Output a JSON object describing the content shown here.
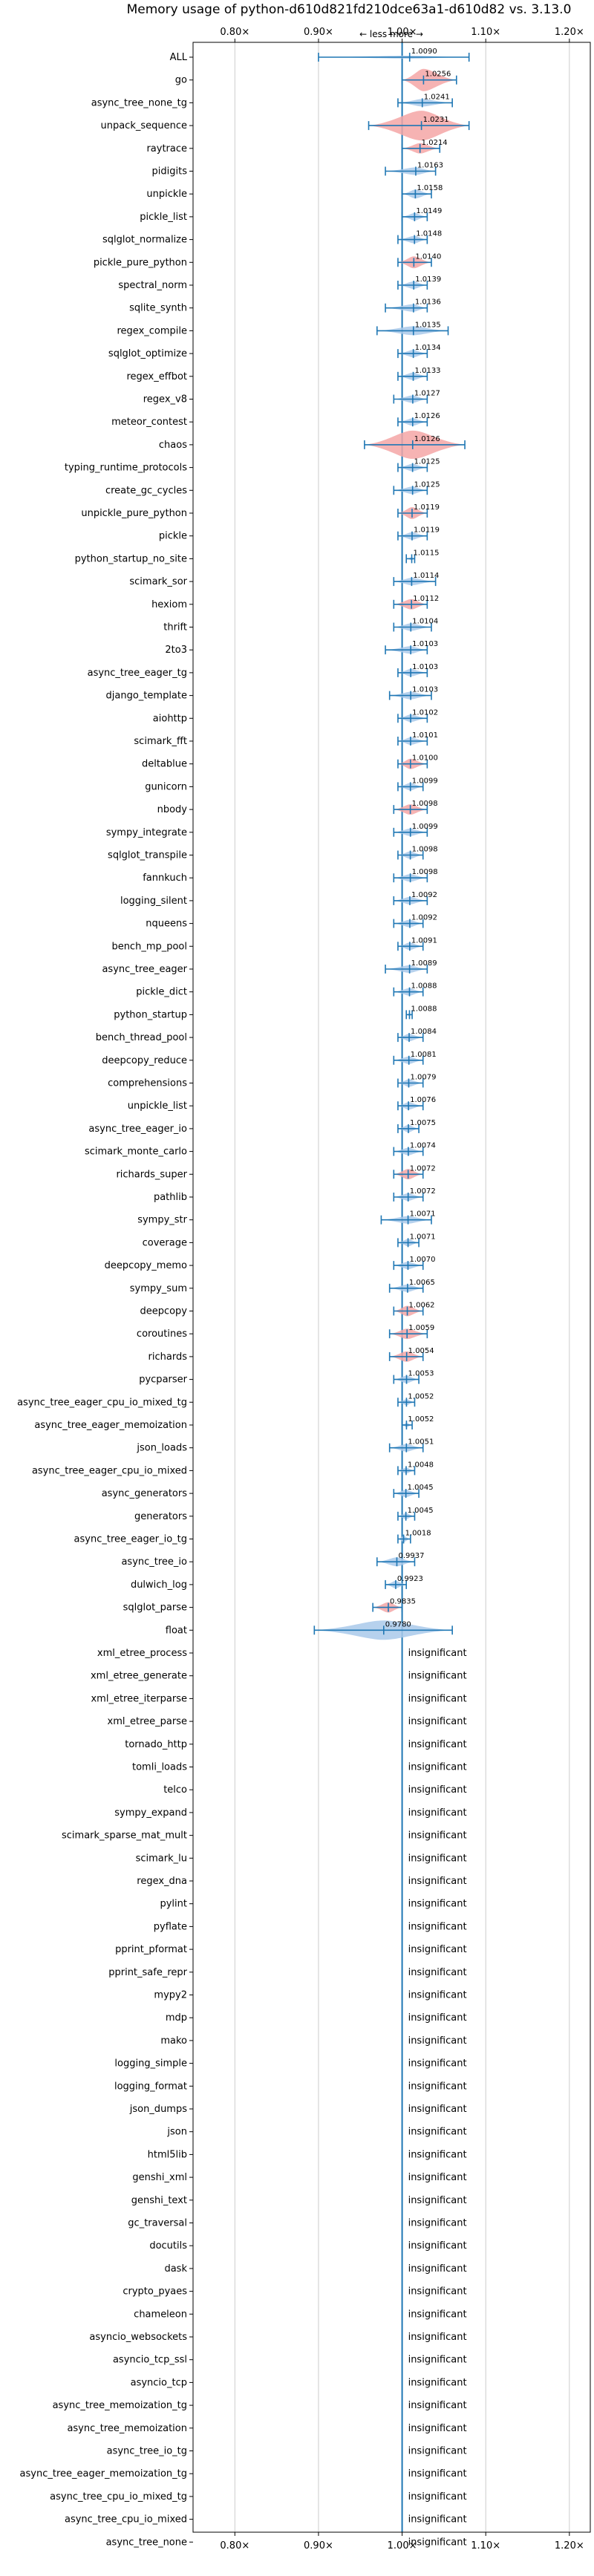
{
  "chart_data": {
    "type": "violin",
    "title": "Memory usage of python-d610d821fd210dce63a1-d610d82 vs. 3.13.0",
    "direction_label": "← less   more →",
    "insignificant_label": "insignificant",
    "xlim": [
      0.75,
      1.225
    ],
    "xticks": [
      0.8,
      0.9,
      1.0,
      1.1,
      1.2
    ],
    "xtick_labels": [
      "0.80×",
      "0.90×",
      "1.00×",
      "1.10×",
      "1.20×"
    ],
    "colors": {
      "regression": "#f4a6a6",
      "improvement": "#a9c9ea",
      "line": "#1f77b4",
      "grid": "#cccccc"
    },
    "benchmarks": [
      {
        "name": "ALL",
        "value": 1.009,
        "label": "1.0090",
        "lo": 0.9,
        "hi": 1.08,
        "w": 4,
        "color": "improvement"
      },
      {
        "name": "go",
        "value": 1.0256,
        "label": "1.0256",
        "lo": 1.0,
        "hi": 1.065,
        "w": 30,
        "color": "regression"
      },
      {
        "name": "async_tree_none_tg",
        "value": 1.0241,
        "label": "1.0241",
        "lo": 0.995,
        "hi": 1.06,
        "w": 10,
        "color": "improvement"
      },
      {
        "name": "unpack_sequence",
        "value": 1.0231,
        "label": "1.0231",
        "lo": 0.96,
        "hi": 1.08,
        "w": 40,
        "color": "regression"
      },
      {
        "name": "raytrace",
        "value": 1.0214,
        "label": "1.0214",
        "lo": 1.0,
        "hi": 1.045,
        "w": 14,
        "color": "regression"
      },
      {
        "name": "pidigits",
        "value": 1.0163,
        "label": "1.0163",
        "lo": 0.98,
        "hi": 1.04,
        "w": 10,
        "color": "improvement"
      },
      {
        "name": "unpickle",
        "value": 1.0158,
        "label": "1.0158",
        "lo": 1.0,
        "hi": 1.035,
        "w": 12,
        "color": "improvement"
      },
      {
        "name": "pickle_list",
        "value": 1.0149,
        "label": "1.0149",
        "lo": 1.0,
        "hi": 1.03,
        "w": 10,
        "color": "improvement"
      },
      {
        "name": "sqlglot_normalize",
        "value": 1.0148,
        "label": "1.0148",
        "lo": 0.995,
        "hi": 1.03,
        "w": 10,
        "color": "improvement"
      },
      {
        "name": "pickle_pure_python",
        "value": 1.014,
        "label": "1.0140",
        "lo": 0.995,
        "hi": 1.035,
        "w": 16,
        "color": "regression"
      },
      {
        "name": "spectral_norm",
        "value": 1.0139,
        "label": "1.0139",
        "lo": 0.995,
        "hi": 1.03,
        "w": 10,
        "color": "improvement"
      },
      {
        "name": "sqlite_synth",
        "value": 1.0136,
        "label": "1.0136",
        "lo": 0.98,
        "hi": 1.03,
        "w": 10,
        "color": "improvement"
      },
      {
        "name": "regex_compile",
        "value": 1.0135,
        "label": "1.0135",
        "lo": 0.97,
        "hi": 1.055,
        "w": 12,
        "color": "improvement"
      },
      {
        "name": "sqlglot_optimize",
        "value": 1.0134,
        "label": "1.0134",
        "lo": 0.995,
        "hi": 1.03,
        "w": 10,
        "color": "improvement"
      },
      {
        "name": "regex_effbot",
        "value": 1.0133,
        "label": "1.0133",
        "lo": 0.995,
        "hi": 1.03,
        "w": 10,
        "color": "improvement"
      },
      {
        "name": "regex_v8",
        "value": 1.0127,
        "label": "1.0127",
        "lo": 0.99,
        "hi": 1.03,
        "w": 10,
        "color": "improvement"
      },
      {
        "name": "meteor_contest",
        "value": 1.0126,
        "label": "1.0126",
        "lo": 0.995,
        "hi": 1.03,
        "w": 10,
        "color": "improvement"
      },
      {
        "name": "chaos",
        "value": 1.0126,
        "label": "1.0126",
        "lo": 0.955,
        "hi": 1.075,
        "w": 38,
        "color": "regression"
      },
      {
        "name": "typing_runtime_protocols",
        "value": 1.0125,
        "label": "1.0125",
        "lo": 0.995,
        "hi": 1.03,
        "w": 10,
        "color": "improvement"
      },
      {
        "name": "create_gc_cycles",
        "value": 1.0125,
        "label": "1.0125",
        "lo": 0.99,
        "hi": 1.03,
        "w": 10,
        "color": "improvement"
      },
      {
        "name": "unpickle_pure_python",
        "value": 1.0119,
        "label": "1.0119",
        "lo": 0.995,
        "hi": 1.03,
        "w": 16,
        "color": "regression"
      },
      {
        "name": "pickle",
        "value": 1.0119,
        "label": "1.0119",
        "lo": 0.995,
        "hi": 1.03,
        "w": 10,
        "color": "improvement"
      },
      {
        "name": "python_startup_no_site",
        "value": 1.0115,
        "label": "1.0115",
        "lo": 1.005,
        "hi": 1.015,
        "w": 4,
        "color": "improvement"
      },
      {
        "name": "scimark_sor",
        "value": 1.0114,
        "label": "1.0114",
        "lo": 0.99,
        "hi": 1.04,
        "w": 10,
        "color": "improvement"
      },
      {
        "name": "hexiom",
        "value": 1.0112,
        "label": "1.0112",
        "lo": 0.99,
        "hi": 1.03,
        "w": 14,
        "color": "regression"
      },
      {
        "name": "thrift",
        "value": 1.0104,
        "label": "1.0104",
        "lo": 0.99,
        "hi": 1.035,
        "w": 10,
        "color": "improvement"
      },
      {
        "name": "2to3",
        "value": 1.0103,
        "label": "1.0103",
        "lo": 0.98,
        "hi": 1.03,
        "w": 10,
        "color": "improvement"
      },
      {
        "name": "async_tree_eager_tg",
        "value": 1.0103,
        "label": "1.0103",
        "lo": 0.995,
        "hi": 1.03,
        "w": 10,
        "color": "improvement"
      },
      {
        "name": "django_template",
        "value": 1.0103,
        "label": "1.0103",
        "lo": 0.985,
        "hi": 1.035,
        "w": 10,
        "color": "improvement"
      },
      {
        "name": "aiohttp",
        "value": 1.0102,
        "label": "1.0102",
        "lo": 0.995,
        "hi": 1.03,
        "w": 10,
        "color": "improvement"
      },
      {
        "name": "scimark_fft",
        "value": 1.0101,
        "label": "1.0101",
        "lo": 0.995,
        "hi": 1.03,
        "w": 10,
        "color": "improvement"
      },
      {
        "name": "deltablue",
        "value": 1.01,
        "label": "1.0100",
        "lo": 0.995,
        "hi": 1.03,
        "w": 14,
        "color": "regression"
      },
      {
        "name": "gunicorn",
        "value": 1.0099,
        "label": "1.0099",
        "lo": 0.995,
        "hi": 1.025,
        "w": 10,
        "color": "improvement"
      },
      {
        "name": "nbody",
        "value": 1.0098,
        "label": "1.0098",
        "lo": 0.99,
        "hi": 1.03,
        "w": 14,
        "color": "regression"
      },
      {
        "name": "sympy_integrate",
        "value": 1.0099,
        "label": "1.0099",
        "lo": 0.99,
        "hi": 1.03,
        "w": 10,
        "color": "improvement"
      },
      {
        "name": "sqlglot_transpile",
        "value": 1.0098,
        "label": "1.0098",
        "lo": 0.995,
        "hi": 1.025,
        "w": 10,
        "color": "improvement"
      },
      {
        "name": "fannkuch",
        "value": 1.0098,
        "label": "1.0098",
        "lo": 0.99,
        "hi": 1.03,
        "w": 10,
        "color": "improvement"
      },
      {
        "name": "logging_silent",
        "value": 1.0092,
        "label": "1.0092",
        "lo": 0.99,
        "hi": 1.03,
        "w": 10,
        "color": "improvement"
      },
      {
        "name": "nqueens",
        "value": 1.0092,
        "label": "1.0092",
        "lo": 0.99,
        "hi": 1.025,
        "w": 10,
        "color": "improvement"
      },
      {
        "name": "bench_mp_pool",
        "value": 1.0091,
        "label": "1.0091",
        "lo": 0.995,
        "hi": 1.025,
        "w": 10,
        "color": "improvement"
      },
      {
        "name": "async_tree_eager",
        "value": 1.0089,
        "label": "1.0089",
        "lo": 0.98,
        "hi": 1.03,
        "w": 10,
        "color": "improvement"
      },
      {
        "name": "pickle_dict",
        "value": 1.0088,
        "label": "1.0088",
        "lo": 0.99,
        "hi": 1.025,
        "w": 10,
        "color": "improvement"
      },
      {
        "name": "python_startup",
        "value": 1.0088,
        "label": "1.0088",
        "lo": 1.005,
        "hi": 1.012,
        "w": 4,
        "color": "improvement"
      },
      {
        "name": "bench_thread_pool",
        "value": 1.0084,
        "label": "1.0084",
        "lo": 0.995,
        "hi": 1.025,
        "w": 10,
        "color": "improvement"
      },
      {
        "name": "deepcopy_reduce",
        "value": 1.0081,
        "label": "1.0081",
        "lo": 0.99,
        "hi": 1.025,
        "w": 10,
        "color": "improvement"
      },
      {
        "name": "comprehensions",
        "value": 1.0079,
        "label": "1.0079",
        "lo": 0.995,
        "hi": 1.025,
        "w": 10,
        "color": "improvement"
      },
      {
        "name": "unpickle_list",
        "value": 1.0076,
        "label": "1.0076",
        "lo": 0.995,
        "hi": 1.025,
        "w": 10,
        "color": "improvement"
      },
      {
        "name": "async_tree_eager_io",
        "value": 1.0075,
        "label": "1.0075",
        "lo": 0.995,
        "hi": 1.02,
        "w": 10,
        "color": "improvement"
      },
      {
        "name": "scimark_monte_carlo",
        "value": 1.0074,
        "label": "1.0074",
        "lo": 0.99,
        "hi": 1.025,
        "w": 10,
        "color": "improvement"
      },
      {
        "name": "richards_super",
        "value": 1.0072,
        "label": "1.0072",
        "lo": 0.99,
        "hi": 1.025,
        "w": 14,
        "color": "regression"
      },
      {
        "name": "pathlib",
        "value": 1.0072,
        "label": "1.0072",
        "lo": 0.99,
        "hi": 1.025,
        "w": 10,
        "color": "improvement"
      },
      {
        "name": "sympy_str",
        "value": 1.0071,
        "label": "1.0071",
        "lo": 0.975,
        "hi": 1.035,
        "w": 10,
        "color": "improvement"
      },
      {
        "name": "coverage",
        "value": 1.0071,
        "label": "1.0071",
        "lo": 0.995,
        "hi": 1.02,
        "w": 10,
        "color": "improvement"
      },
      {
        "name": "deepcopy_memo",
        "value": 1.007,
        "label": "1.0070",
        "lo": 0.99,
        "hi": 1.025,
        "w": 10,
        "color": "improvement"
      },
      {
        "name": "sympy_sum",
        "value": 1.0065,
        "label": "1.0065",
        "lo": 0.985,
        "hi": 1.025,
        "w": 10,
        "color": "improvement"
      },
      {
        "name": "deepcopy",
        "value": 1.0062,
        "label": "1.0062",
        "lo": 0.99,
        "hi": 1.025,
        "w": 14,
        "color": "regression"
      },
      {
        "name": "coroutines",
        "value": 1.0059,
        "label": "1.0059",
        "lo": 0.985,
        "hi": 1.03,
        "w": 14,
        "color": "regression"
      },
      {
        "name": "richards",
        "value": 1.0054,
        "label": "1.0054",
        "lo": 0.985,
        "hi": 1.025,
        "w": 14,
        "color": "regression"
      },
      {
        "name": "pycparser",
        "value": 1.0053,
        "label": "1.0053",
        "lo": 0.99,
        "hi": 1.02,
        "w": 10,
        "color": "improvement"
      },
      {
        "name": "async_tree_eager_cpu_io_mixed_tg",
        "value": 1.0052,
        "label": "1.0052",
        "lo": 0.995,
        "hi": 1.015,
        "w": 8,
        "color": "improvement"
      },
      {
        "name": "async_tree_eager_memoization",
        "value": 1.0052,
        "label": "1.0052",
        "lo": 1.0,
        "hi": 1.012,
        "w": 6,
        "color": "improvement"
      },
      {
        "name": "json_loads",
        "value": 1.0051,
        "label": "1.0051",
        "lo": 0.985,
        "hi": 1.025,
        "w": 10,
        "color": "improvement"
      },
      {
        "name": "async_tree_eager_cpu_io_mixed",
        "value": 1.0048,
        "label": "1.0048",
        "lo": 0.995,
        "hi": 1.015,
        "w": 8,
        "color": "improvement"
      },
      {
        "name": "async_generators",
        "value": 1.0045,
        "label": "1.0045",
        "lo": 0.99,
        "hi": 1.02,
        "w": 10,
        "color": "improvement"
      },
      {
        "name": "generators",
        "value": 1.0045,
        "label": "1.0045",
        "lo": 0.995,
        "hi": 1.015,
        "w": 8,
        "color": "improvement"
      },
      {
        "name": "async_tree_eager_io_tg",
        "value": 1.0018,
        "label": "1.0018",
        "lo": 0.995,
        "hi": 1.01,
        "w": 8,
        "color": "improvement"
      },
      {
        "name": "async_tree_io",
        "value": 0.9937,
        "label": "0.9937",
        "lo": 0.97,
        "hi": 1.015,
        "w": 12,
        "color": "improvement"
      },
      {
        "name": "dulwich_log",
        "value": 0.9923,
        "label": "0.9923",
        "lo": 0.98,
        "hi": 1.005,
        "w": 10,
        "color": "improvement"
      },
      {
        "name": "sqlglot_parse",
        "value": 0.9835,
        "label": "0.9835",
        "lo": 0.965,
        "hi": 1.0,
        "w": 14,
        "color": "regression"
      },
      {
        "name": "float",
        "value": 0.978,
        "label": "0.9780",
        "lo": 0.895,
        "hi": 1.06,
        "w": 26,
        "color": "improvement"
      },
      {
        "name": "xml_etree_process"
      },
      {
        "name": "xml_etree_generate"
      },
      {
        "name": "xml_etree_iterparse"
      },
      {
        "name": "xml_etree_parse"
      },
      {
        "name": "tornado_http"
      },
      {
        "name": "tomli_loads"
      },
      {
        "name": "telco"
      },
      {
        "name": "sympy_expand"
      },
      {
        "name": "scimark_sparse_mat_mult"
      },
      {
        "name": "scimark_lu"
      },
      {
        "name": "regex_dna"
      },
      {
        "name": "pylint"
      },
      {
        "name": "pyflate"
      },
      {
        "name": "pprint_pformat"
      },
      {
        "name": "pprint_safe_repr"
      },
      {
        "name": "mypy2"
      },
      {
        "name": "mdp"
      },
      {
        "name": "mako"
      },
      {
        "name": "logging_simple"
      },
      {
        "name": "logging_format"
      },
      {
        "name": "json_dumps"
      },
      {
        "name": "json"
      },
      {
        "name": "html5lib"
      },
      {
        "name": "genshi_xml"
      },
      {
        "name": "genshi_text"
      },
      {
        "name": "gc_traversal"
      },
      {
        "name": "docutils"
      },
      {
        "name": "dask"
      },
      {
        "name": "crypto_pyaes"
      },
      {
        "name": "chameleon"
      },
      {
        "name": "asyncio_websockets"
      },
      {
        "name": "asyncio_tcp_ssl"
      },
      {
        "name": "asyncio_tcp"
      },
      {
        "name": "async_tree_memoization_tg"
      },
      {
        "name": "async_tree_memoization"
      },
      {
        "name": "async_tree_io_tg"
      },
      {
        "name": "async_tree_eager_memoization_tg"
      },
      {
        "name": "async_tree_cpu_io_mixed_tg"
      },
      {
        "name": "async_tree_cpu_io_mixed"
      },
      {
        "name": "async_tree_none"
      }
    ]
  }
}
